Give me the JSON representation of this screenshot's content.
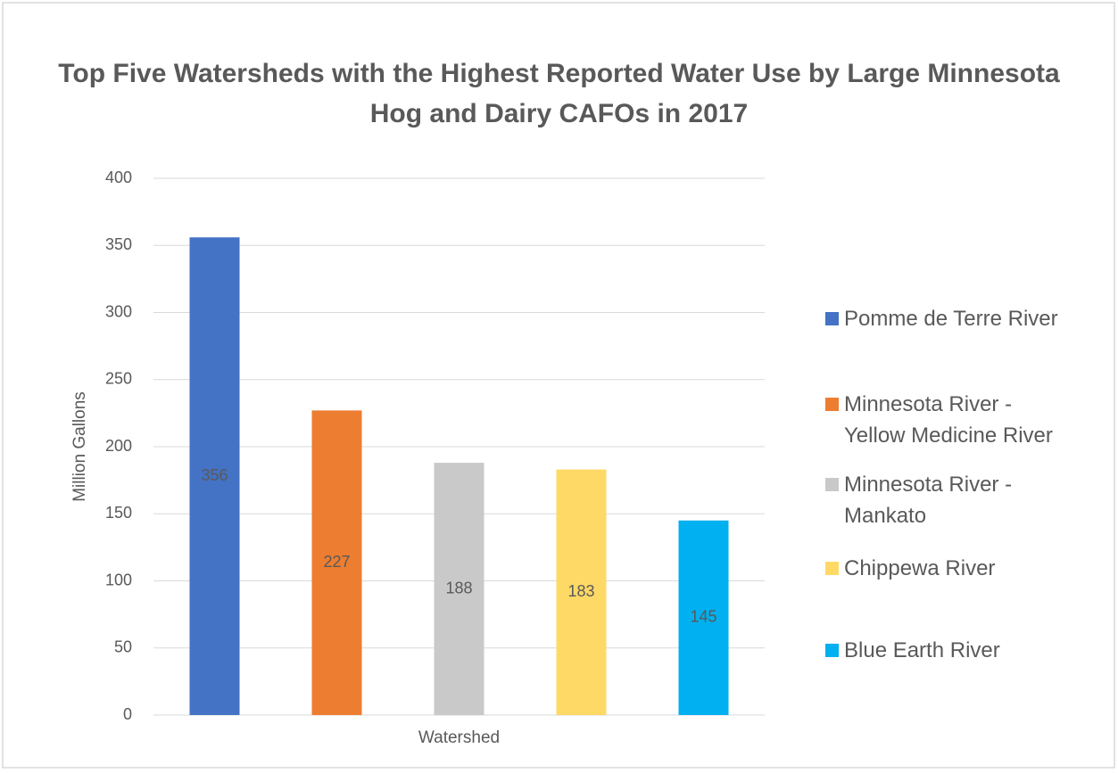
{
  "chart_data": {
    "type": "bar",
    "title": "Top Five Watersheds with the Highest Reported Water Use by Large Minnesota Hog and Dairy CAFOs in 2017",
    "ylabel": "Million Gallons",
    "categories": [
      "Watershed"
    ],
    "series": [
      {
        "name": "Pomme de Terre River",
        "color": "#4472c4",
        "values": [
          356
        ]
      },
      {
        "name": "Minnesota River - Yellow Medicine River",
        "color": "#ed7d31",
        "values": [
          227
        ]
      },
      {
        "name": "Minnesota River - Mankato",
        "color": "#c9c9c9",
        "values": [
          188
        ]
      },
      {
        "name": "Chippewa River",
        "color": "#ffd966",
        "values": [
          183
        ]
      },
      {
        "name": "Blue Earth River",
        "color": "#00b0f0",
        "values": [
          145
        ]
      }
    ],
    "ylim": [
      0,
      400
    ],
    "yticks": [
      0,
      50,
      100,
      150,
      200,
      250,
      300,
      350,
      400
    ],
    "grid": true,
    "legend": "right"
  }
}
